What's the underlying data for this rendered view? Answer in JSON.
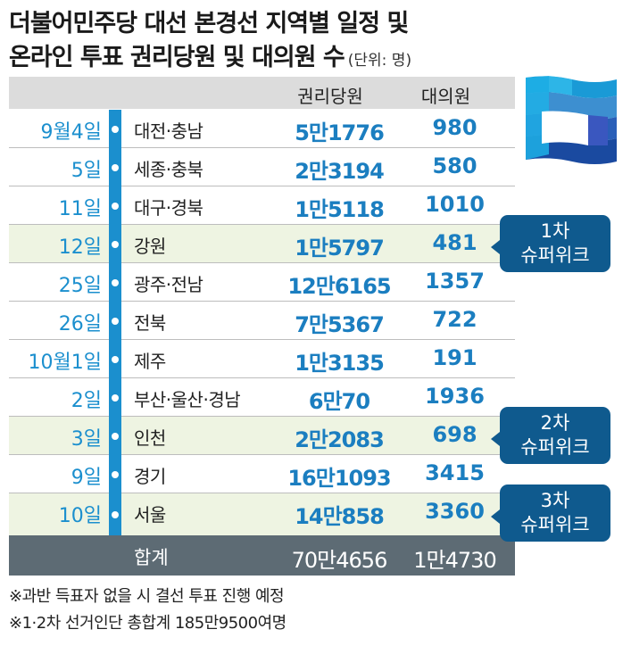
{
  "title": {
    "line1": "더불어민주당 대선 본경선 지역별 일정 및",
    "line2": "온라인 투표 권리당원 및 대의원 수",
    "unit": "(단위: 명)"
  },
  "table": {
    "headers": {
      "party_members": "권리당원",
      "delegates": "대의원"
    },
    "rows": [
      {
        "date": "9월4일",
        "region": "대전·충남",
        "party_members": "5만1776",
        "delegates": "980"
      },
      {
        "date": "5일",
        "region": "세종·충북",
        "party_members": "2만3194",
        "delegates": "580"
      },
      {
        "date": "11일",
        "region": "대구·경북",
        "party_members": "1만5118",
        "delegates": "1010"
      },
      {
        "date": "12일",
        "region": "강원",
        "party_members": "1만5797",
        "delegates": "481"
      },
      {
        "date": "25일",
        "region": "광주·전남",
        "party_members": "12만6165",
        "delegates": "1357"
      },
      {
        "date": "26일",
        "region": "전북",
        "party_members": "7만5367",
        "delegates": "722"
      },
      {
        "date": "10월1일",
        "region": "제주",
        "party_members": "1만3135",
        "delegates": "191"
      },
      {
        "date": "2일",
        "region": "부산·울산·경남",
        "party_members": "6만70",
        "delegates": "1936"
      },
      {
        "date": "3일",
        "region": "인천",
        "party_members": "2만2083",
        "delegates": "698"
      },
      {
        "date": "9일",
        "region": "경기",
        "party_members": "16만1093",
        "delegates": "3415"
      },
      {
        "date": "10일",
        "region": "서울",
        "party_members": "14만858",
        "delegates": "3360"
      }
    ],
    "total": {
      "label": "합계",
      "party_members": "70만4656",
      "delegates": "1만4730"
    }
  },
  "callouts": [
    {
      "line1": "1차",
      "line2": "슈퍼위크"
    },
    {
      "line1": "2차",
      "line2": "슈퍼위크"
    },
    {
      "line1": "3차",
      "line2": "슈퍼위크"
    }
  ],
  "notes": [
    "※과반 득표자 없을 시 결선 투표 진행 예정",
    "※1·2차 선거인단 총합계 185만9500여명"
  ],
  "colors": {
    "accent": "#1b8fce",
    "value_text": "#1b7ec0",
    "highlight_row": "#eef4e2",
    "header_bg": "#dcdcdc",
    "total_bg": "#5d6b74",
    "callout_bg": "#0f5a8e"
  },
  "icons": {
    "flag": "party-flag-icon"
  }
}
